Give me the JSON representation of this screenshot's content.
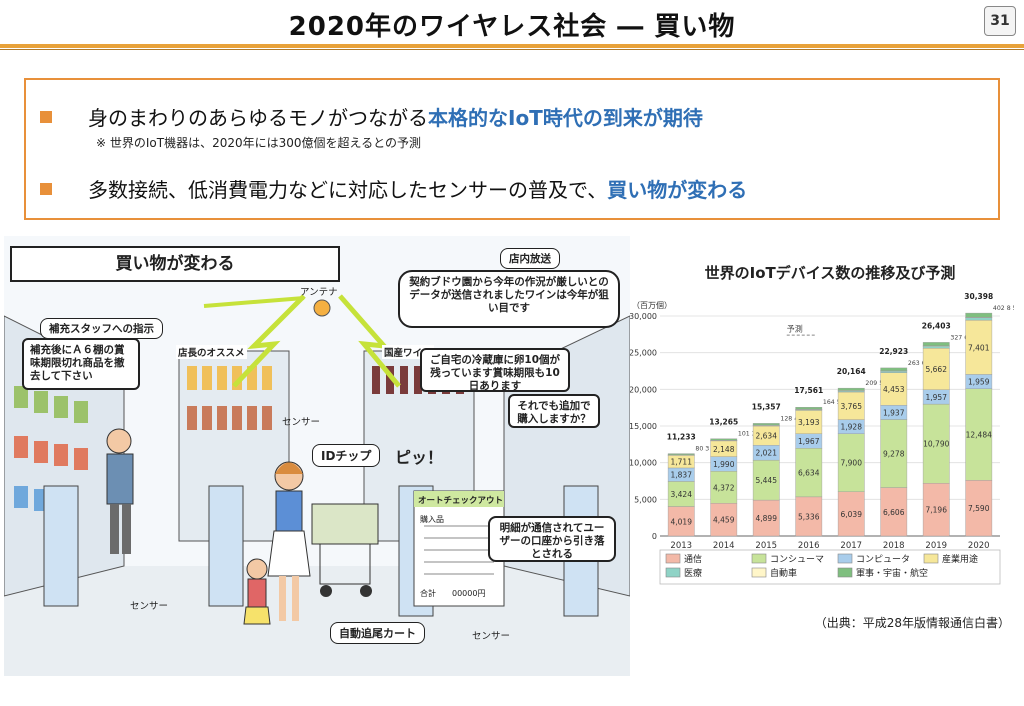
{
  "slide": {
    "title": "2020年のワイヤレス社会 ― 買い物",
    "page_number": "31"
  },
  "bullets": {
    "b1_plain": "身のまわりのあらゆるモノがつながる",
    "b1_highlight": "本格的なIoT時代の到来が期待",
    "b1_note": "※ 世界のIoT機器は、2020年には300億個を超えるとの予測",
    "b2_plain": "多数接続、低消費電力などに対応したセンサーの普及で、",
    "b2_highlight": "買い物が変わる"
  },
  "illustration": {
    "caption": "買い物が変わる",
    "tag_staff": "補充スタッフへの指示",
    "staff_msg": "補充後にＡ６棚の賞味期限切れ商品を撤去して下さい",
    "tag_broadcast": "店内放送",
    "broadcast_msg": "契約ブドウ園から今年の作況が厳しいとのデータが送信されましたワインは今年が狙い目です",
    "antenna": "アンテナ",
    "sensor_top": "センサー",
    "fridge_msg": "ご自宅の冷蔵庫に卵10個が残っています賞味期限も10日あります",
    "add_msg": "それでも追加で購入しますか？",
    "id_chip": "IDチップ",
    "beep": "ピッ！",
    "auto_checkout": "オートチェックアウト",
    "purchase_label": "購入品",
    "total_label": "合計",
    "total_value": "00000円",
    "billing_msg": "明細が通信されてユーザーの口座から引き落とされる",
    "sensor_left": "センサー",
    "sensor_right": "センサー",
    "cart_tag": "自動追尾カート",
    "shelf_sign_left": "店長のオススメ",
    "shelf_sign_right": "国産ワイン"
  },
  "chart_data": {
    "type": "bar",
    "stacked": true,
    "title": "世界のIoTデバイス数の推移及び予測",
    "ylabel": "（百万個）",
    "forecast_label": "予測",
    "ylim": [
      0,
      30000
    ],
    "yticks": [
      "0",
      "5,000",
      "10,000",
      "15,000",
      "20,000",
      "25,000",
      "30,000"
    ],
    "categories": [
      "2013",
      "2014",
      "2015",
      "2016",
      "2017",
      "2018",
      "2019",
      "2020"
    ],
    "totals": [
      "11,233",
      "13,265",
      "15,357",
      "17,561",
      "20,164",
      "22,923",
      "26,403",
      "30,398"
    ],
    "series": [
      {
        "name": "通信",
        "color": "#f3b9a8",
        "values": [
          4019,
          4459,
          4899,
          5336,
          6039,
          6606,
          7196,
          7590
        ]
      },
      {
        "name": "コンシューマ",
        "color": "#c7e39a",
        "values": [
          3424,
          4372,
          5445,
          6634,
          7900,
          9278,
          10790,
          12484
        ]
      },
      {
        "name": "コンピュータ",
        "color": "#a9cdeb",
        "values": [
          1837,
          1990,
          2021,
          1967,
          1928,
          1937,
          1957,
          1959
        ]
      },
      {
        "name": "産業用途",
        "color": "#f6e79a",
        "values": [
          1711,
          2148,
          2634,
          3193,
          3765,
          4453,
          5662,
          7401
        ]
      },
      {
        "name": "医療",
        "color": "#8fd3c6",
        "values": [
          80,
          101,
          128,
          164,
          209,
          263,
          327,
          402
        ]
      },
      {
        "name": "自動車",
        "color": "#fff6c9",
        "values": [
          3,
          3,
          4,
          5,
          5,
          6,
          6,
          8
        ]
      },
      {
        "name": "軍事・宇宙・航空",
        "color": "#7fbf7f",
        "values": [
          159,
          192,
          225,
          262,
          318,
          380,
          464,
          554
        ]
      }
    ],
    "legend": [
      {
        "name": "通信",
        "color": "#f3b9a8"
      },
      {
        "name": "コンシューマ",
        "color": "#c7e39a"
      },
      {
        "name": "コンピュータ",
        "color": "#a9cdeb"
      },
      {
        "name": "産業用途",
        "color": "#f6e79a"
      },
      {
        "name": "医療",
        "color": "#8fd3c6"
      },
      {
        "name": "自動車",
        "color": "#fff6c9"
      },
      {
        "name": "軍事・宇宙・航空",
        "color": "#7fbf7f"
      }
    ]
  },
  "source": "（出典：平成28年版情報通信白書）"
}
